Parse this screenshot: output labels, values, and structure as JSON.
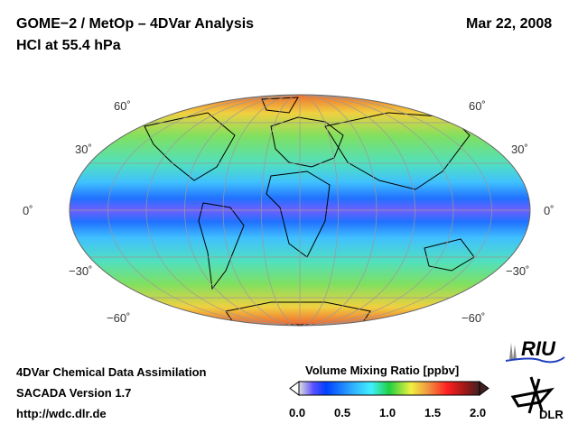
{
  "header": {
    "title": "GOME−2 / MetOp – 4DVar Analysis",
    "subtitle": "HCl at 55.4 hPa",
    "date": "Mar 22, 2008"
  },
  "map": {
    "lat_labels": {
      "n60": "60˚",
      "n30": "30˚",
      "eq": "0˚",
      "s30": "−30˚",
      "s60": "−60˚"
    }
  },
  "colorbar": {
    "title": "Volume Mixing Ratio [ppbv]",
    "ticks": [
      "0.0",
      "0.5",
      "1.0",
      "1.5",
      "2.0"
    ],
    "range": [
      0.0,
      2.0
    ],
    "colors": [
      "#e0e0e0",
      "#5a50ff",
      "#0040ff",
      "#30b0ff",
      "#40f0ff",
      "#20d040",
      "#f0f040",
      "#f09040",
      "#ff2020",
      "#a01818",
      "#402020"
    ]
  },
  "footer": {
    "line1": "4DVar Chemical Data Assimilation",
    "line2": "SACADA Version 1.7",
    "line3": "http://wdc.dlr.de"
  },
  "logos": {
    "riu": "RIU",
    "dlr": "DLR"
  }
}
